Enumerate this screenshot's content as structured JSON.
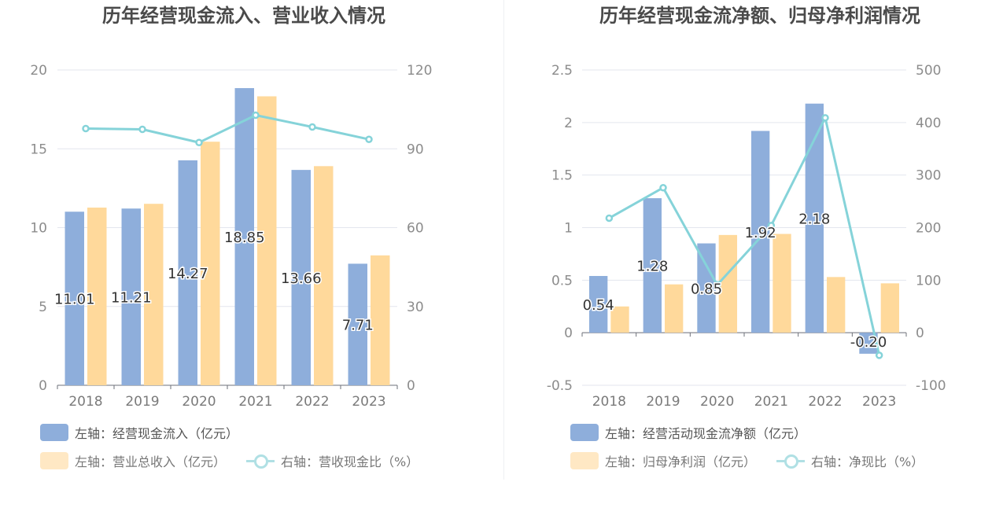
{
  "chart_data": [
    {
      "type": "bar",
      "title": "历年经营现金流入、营业收入情况",
      "categories": [
        "2018",
        "2019",
        "2020",
        "2021",
        "2022",
        "2023"
      ],
      "left_axis": {
        "ylim": [
          0,
          20
        ],
        "ticks": [
          "0",
          "5",
          "10",
          "15",
          "20"
        ]
      },
      "right_axis": {
        "ylim": [
          0,
          120
        ],
        "ticks": [
          "0",
          "30",
          "60",
          "90",
          "120"
        ]
      },
      "series": [
        {
          "name": "左轴：经营现金流入（亿元）",
          "axis": "left",
          "kind": "bar",
          "color": "#8eaedb",
          "values": [
            11.01,
            11.21,
            14.27,
            18.85,
            13.66,
            7.71
          ],
          "labels": [
            "11.01",
            "11.21",
            "14.27",
            "18.85",
            "13.66",
            "7.71"
          ]
        },
        {
          "name": "左轴：营业总收入（亿元）",
          "axis": "left",
          "kind": "bar",
          "color": "#ffd99b",
          "values": [
            11.27,
            11.51,
            15.45,
            18.33,
            13.9,
            8.24
          ]
        },
        {
          "name": "右轴：营收现金比（%）",
          "axis": "right",
          "kind": "line",
          "color": "#85d3d9",
          "values": [
            97.7,
            97.4,
            92.4,
            102.8,
            98.3,
            93.6
          ]
        }
      ],
      "grid": true,
      "legend_position": "bottom-left"
    },
    {
      "type": "bar",
      "title": "历年经营现金流净额、归母净利润情况",
      "categories": [
        "2018",
        "2019",
        "2020",
        "2021",
        "2022",
        "2023"
      ],
      "left_axis": {
        "ylim": [
          -0.5,
          2.5
        ],
        "ticks": [
          "-0.5",
          "0",
          "0.5",
          "1",
          "1.5",
          "2",
          "2.5"
        ]
      },
      "right_axis": {
        "ylim": [
          -100,
          500
        ],
        "ticks": [
          "-100",
          "0",
          "100",
          "200",
          "300",
          "400",
          "500"
        ]
      },
      "series": [
        {
          "name": "左轴：经营活动现金流净额（亿元）",
          "axis": "left",
          "kind": "bar",
          "color": "#8eaedb",
          "values": [
            0.54,
            1.28,
            0.85,
            1.92,
            2.18,
            -0.2
          ],
          "labels": [
            "0.54",
            "1.28",
            "0.85",
            "1.92",
            "2.18",
            "-0.20"
          ]
        },
        {
          "name": "左轴：归母净利润（亿元）",
          "axis": "left",
          "kind": "bar",
          "color": "#ffd99b",
          "values": [
            0.25,
            0.46,
            0.93,
            0.94,
            0.53,
            0.47
          ]
        },
        {
          "name": "右轴：净现比（%）",
          "axis": "right",
          "kind": "line",
          "color": "#85d3d9",
          "values": [
            218,
            276,
            91,
            204,
            409,
            -43
          ]
        }
      ],
      "grid": true,
      "legend_position": "bottom-left"
    }
  ],
  "colors": {
    "bar_primary": "#8eaedb",
    "bar_secondary": "#ffd99b",
    "line": "#85d3d9",
    "legend_bar_secondary": "#ffe8c4",
    "legend_line": "#b0e0e4"
  }
}
